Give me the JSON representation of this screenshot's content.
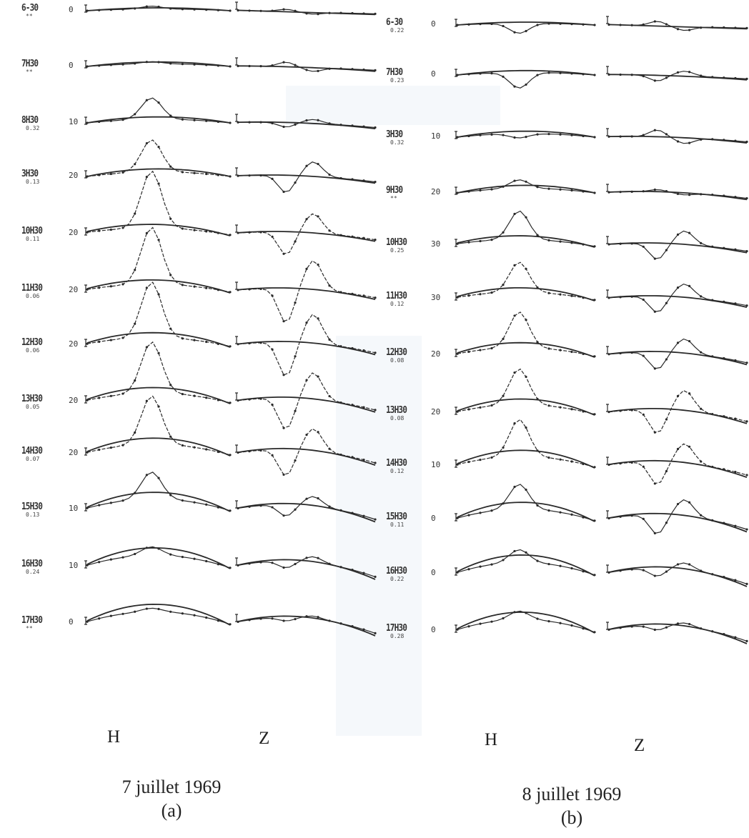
{
  "panels": [
    {
      "id": "a",
      "date": "7 juillet 1969",
      "letter": "(a)",
      "components": [
        "H",
        "Z"
      ],
      "rows": [
        {
          "time": "6-30",
          "sub": "**",
          "scale": "0"
        },
        {
          "time": "7H30",
          "sub": "**",
          "scale": "0"
        },
        {
          "time": "8H30",
          "sub": "0.32",
          "scale": "10"
        },
        {
          "time": "3H30",
          "sub": "0.13",
          "scale": "20"
        },
        {
          "time": "10H30",
          "sub": "0.11",
          "scale": "20"
        },
        {
          "time": "11H30",
          "sub": "0.06",
          "scale": "20"
        },
        {
          "time": "12H30",
          "sub": "0.06",
          "scale": "20"
        },
        {
          "time": "13H30",
          "sub": "0.05",
          "scale": "20"
        },
        {
          "time": "14H30",
          "sub": "0.07",
          "scale": "20"
        },
        {
          "time": "15H30",
          "sub": "0.13",
          "scale": "10"
        },
        {
          "time": "16H30",
          "sub": "0.24",
          "scale": "10"
        },
        {
          "time": "17H30",
          "sub": "**",
          "scale": "0"
        }
      ]
    },
    {
      "id": "b",
      "date": "8 juillet 1969",
      "letter": "(b)",
      "components": [
        "H",
        "Z"
      ],
      "rows": [
        {
          "time": "6-30",
          "sub": "0.22",
          "scale": "0"
        },
        {
          "time": "7H30",
          "sub": "0.23",
          "scale": "0"
        },
        {
          "time": "3H30",
          "sub": "0.32",
          "scale": "10"
        },
        {
          "time": "9H30",
          "sub": "**",
          "scale": "20"
        },
        {
          "time": "10H30",
          "sub": "0.25",
          "scale": "30"
        },
        {
          "time": "11H30",
          "sub": "0.12",
          "scale": "30"
        },
        {
          "time": "12H30",
          "sub": "0.08",
          "scale": "20"
        },
        {
          "time": "13H30",
          "sub": "0.08",
          "scale": "20"
        },
        {
          "time": "14H30",
          "sub": "0.12",
          "scale": "10"
        },
        {
          "time": "15H30",
          "sub": "0.11",
          "scale": "0"
        },
        {
          "time": "16H30",
          "sub": "0.22",
          "scale": "0"
        },
        {
          "time": "17H30",
          "sub": "0.28",
          "scale": "0"
        }
      ]
    }
  ],
  "colors": {
    "ink": "#2a2a2a",
    "background": "#ffffff",
    "band": "#eef3f9"
  }
}
